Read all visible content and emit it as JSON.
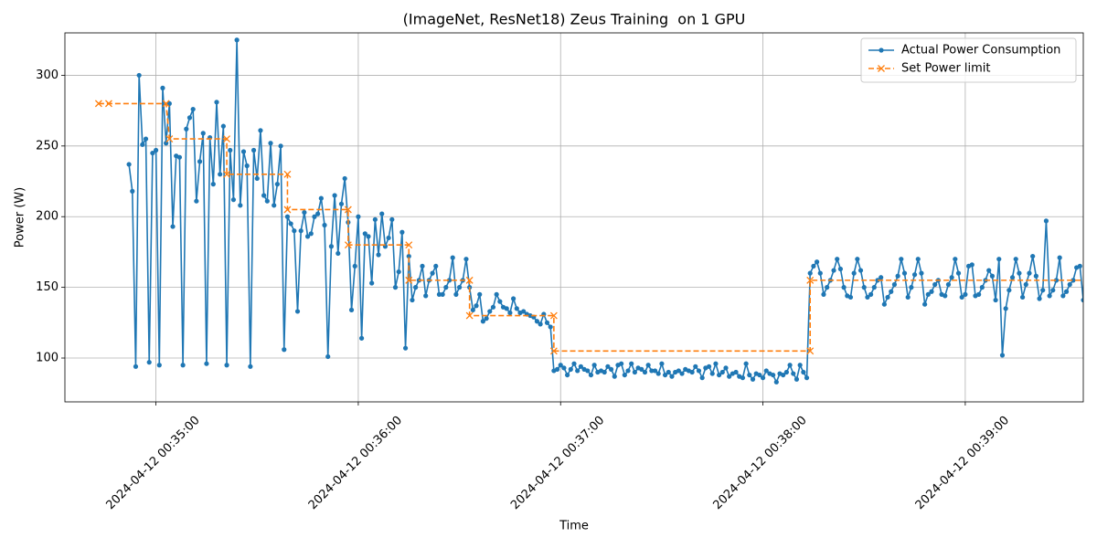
{
  "chart_data": {
    "type": "line",
    "title": "(ImageNet, ResNet18) Zeus Training  on 1 GPU",
    "x_label": "Time",
    "y_label": "Power (W)",
    "xlim": [
      "2024-04-12 00:34:33",
      "2024-04-12 00:39:35"
    ],
    "xticks": [
      "2024-04-12 00:35:00",
      "2024-04-12 00:36:00",
      "2024-04-12 00:37:00",
      "2024-04-12 00:38:00",
      "2024-04-12 00:39:00"
    ],
    "ylim": [
      69,
      330
    ],
    "yticks": [
      100,
      150,
      200,
      250,
      300
    ],
    "grid": true,
    "legend": "upper right",
    "series": [
      {
        "name": "Actual Power Consumption",
        "color": "#1f77b4",
        "marker": "o",
        "linestyle": "solid",
        "x": [
          "2024-04-12 00:34:52",
          "2024-04-12 00:34:53",
          "2024-04-12 00:34:54",
          "2024-04-12 00:34:55",
          "2024-04-12 00:34:56",
          "2024-04-12 00:34:57",
          "2024-04-12 00:34:58",
          "2024-04-12 00:34:59",
          "2024-04-12 00:35:00",
          "2024-04-12 00:35:01",
          "2024-04-12 00:35:02",
          "2024-04-12 00:35:03",
          "2024-04-12 00:35:04",
          "2024-04-12 00:35:05",
          "2024-04-12 00:35:06",
          "2024-04-12 00:35:07",
          "2024-04-12 00:35:08",
          "2024-04-12 00:35:09",
          "2024-04-12 00:35:10",
          "2024-04-12 00:35:11",
          "2024-04-12 00:35:12",
          "2024-04-12 00:35:13",
          "2024-04-12 00:35:14",
          "2024-04-12 00:35:15",
          "2024-04-12 00:35:16",
          "2024-04-12 00:35:17",
          "2024-04-12 00:35:18",
          "2024-04-12 00:35:19",
          "2024-04-12 00:35:20",
          "2024-04-12 00:35:21",
          "2024-04-12 00:35:22",
          "2024-04-12 00:35:23",
          "2024-04-12 00:35:24",
          "2024-04-12 00:35:25",
          "2024-04-12 00:35:26",
          "2024-04-12 00:35:27",
          "2024-04-12 00:35:28",
          "2024-04-12 00:35:29",
          "2024-04-12 00:35:30",
          "2024-04-12 00:35:31",
          "2024-04-12 00:35:32",
          "2024-04-12 00:35:33",
          "2024-04-12 00:35:34",
          "2024-04-12 00:35:35",
          "2024-04-12 00:35:36",
          "2024-04-12 00:35:37",
          "2024-04-12 00:35:38",
          "2024-04-12 00:35:39",
          "2024-04-12 00:35:40",
          "2024-04-12 00:35:41",
          "2024-04-12 00:35:42",
          "2024-04-12 00:35:43",
          "2024-04-12 00:35:44",
          "2024-04-12 00:35:45",
          "2024-04-12 00:35:46",
          "2024-04-12 00:35:47",
          "2024-04-12 00:35:48",
          "2024-04-12 00:35:49",
          "2024-04-12 00:35:50",
          "2024-04-12 00:35:51",
          "2024-04-12 00:35:52",
          "2024-04-12 00:35:53",
          "2024-04-12 00:35:54",
          "2024-04-12 00:35:55",
          "2024-04-12 00:35:56",
          "2024-04-12 00:35:57",
          "2024-04-12 00:35:58",
          "2024-04-12 00:35:59",
          "2024-04-12 00:36:00",
          "2024-04-12 00:36:01",
          "2024-04-12 00:36:02",
          "2024-04-12 00:36:03",
          "2024-04-12 00:36:04",
          "2024-04-12 00:36:05",
          "2024-04-12 00:36:06",
          "2024-04-12 00:36:07",
          "2024-04-12 00:36:08",
          "2024-04-12 00:36:09",
          "2024-04-12 00:36:10",
          "2024-04-12 00:36:11",
          "2024-04-12 00:36:12",
          "2024-04-12 00:36:13",
          "2024-04-12 00:36:14",
          "2024-04-12 00:36:15",
          "2024-04-12 00:36:16",
          "2024-04-12 00:36:17",
          "2024-04-12 00:36:18",
          "2024-04-12 00:36:19",
          "2024-04-12 00:36:20",
          "2024-04-12 00:36:21",
          "2024-04-12 00:36:22",
          "2024-04-12 00:36:23",
          "2024-04-12 00:36:24",
          "2024-04-12 00:36:25",
          "2024-04-12 00:36:26",
          "2024-04-12 00:36:27",
          "2024-04-12 00:36:28",
          "2024-04-12 00:36:29",
          "2024-04-12 00:36:30",
          "2024-04-12 00:36:31",
          "2024-04-12 00:36:32",
          "2024-04-12 00:36:33",
          "2024-04-12 00:36:34",
          "2024-04-12 00:36:35",
          "2024-04-12 00:36:36",
          "2024-04-12 00:36:37",
          "2024-04-12 00:36:38",
          "2024-04-12 00:36:39",
          "2024-04-12 00:36:40",
          "2024-04-12 00:36:41",
          "2024-04-12 00:36:42",
          "2024-04-12 00:36:43",
          "2024-04-12 00:36:44",
          "2024-04-12 00:36:45",
          "2024-04-12 00:36:46",
          "2024-04-12 00:36:47",
          "2024-04-12 00:36:48",
          "2024-04-12 00:36:49",
          "2024-04-12 00:36:50",
          "2024-04-12 00:36:51",
          "2024-04-12 00:36:52",
          "2024-04-12 00:36:53",
          "2024-04-12 00:36:54",
          "2024-04-12 00:36:55",
          "2024-04-12 00:36:56",
          "2024-04-12 00:36:57",
          "2024-04-12 00:36:58",
          "2024-04-12 00:36:59",
          "2024-04-12 00:37:00",
          "2024-04-12 00:37:01",
          "2024-04-12 00:37:02",
          "2024-04-12 00:37:03",
          "2024-04-12 00:37:04",
          "2024-04-12 00:37:05",
          "2024-04-12 00:37:06",
          "2024-04-12 00:37:07",
          "2024-04-12 00:37:08",
          "2024-04-12 00:37:09",
          "2024-04-12 00:37:10",
          "2024-04-12 00:37:11",
          "2024-04-12 00:37:12",
          "2024-04-12 00:37:13",
          "2024-04-12 00:37:14",
          "2024-04-12 00:37:15",
          "2024-04-12 00:37:16",
          "2024-04-12 00:37:17",
          "2024-04-12 00:37:18",
          "2024-04-12 00:37:19",
          "2024-04-12 00:37:20",
          "2024-04-12 00:37:21",
          "2024-04-12 00:37:22",
          "2024-04-12 00:37:23",
          "2024-04-12 00:37:24",
          "2024-04-12 00:37:25",
          "2024-04-12 00:37:26",
          "2024-04-12 00:37:27",
          "2024-04-12 00:37:28",
          "2024-04-12 00:37:29",
          "2024-04-12 00:37:30",
          "2024-04-12 00:37:31",
          "2024-04-12 00:37:32",
          "2024-04-12 00:37:33",
          "2024-04-12 00:37:34",
          "2024-04-12 00:37:35",
          "2024-04-12 00:37:36",
          "2024-04-12 00:37:37",
          "2024-04-12 00:37:38",
          "2024-04-12 00:37:39",
          "2024-04-12 00:37:40",
          "2024-04-12 00:37:41",
          "2024-04-12 00:37:42",
          "2024-04-12 00:37:43",
          "2024-04-12 00:37:44",
          "2024-04-12 00:37:45",
          "2024-04-12 00:37:46",
          "2024-04-12 00:37:47",
          "2024-04-12 00:37:48",
          "2024-04-12 00:37:49",
          "2024-04-12 00:37:50",
          "2024-04-12 00:37:51",
          "2024-04-12 00:37:52",
          "2024-04-12 00:37:53",
          "2024-04-12 00:37:54",
          "2024-04-12 00:37:55",
          "2024-04-12 00:37:56",
          "2024-04-12 00:37:57",
          "2024-04-12 00:37:58",
          "2024-04-12 00:37:59",
          "2024-04-12 00:38:00",
          "2024-04-12 00:38:01",
          "2024-04-12 00:38:02",
          "2024-04-12 00:38:03",
          "2024-04-12 00:38:04",
          "2024-04-12 00:38:05",
          "2024-04-12 00:38:06",
          "2024-04-12 00:38:07",
          "2024-04-12 00:38:08",
          "2024-04-12 00:38:09",
          "2024-04-12 00:38:10",
          "2024-04-12 00:38:11",
          "2024-04-12 00:38:12",
          "2024-04-12 00:38:13",
          "2024-04-12 00:38:14",
          "2024-04-12 00:38:15",
          "2024-04-12 00:38:16",
          "2024-04-12 00:38:17",
          "2024-04-12 00:38:18",
          "2024-04-12 00:38:19",
          "2024-04-12 00:38:20",
          "2024-04-12 00:38:21",
          "2024-04-12 00:38:22",
          "2024-04-12 00:38:23",
          "2024-04-12 00:38:24",
          "2024-04-12 00:38:25",
          "2024-04-12 00:38:26",
          "2024-04-12 00:38:27",
          "2024-04-12 00:38:28",
          "2024-04-12 00:38:29",
          "2024-04-12 00:38:30",
          "2024-04-12 00:38:31",
          "2024-04-12 00:38:32",
          "2024-04-12 00:38:33",
          "2024-04-12 00:38:34",
          "2024-04-12 00:38:35",
          "2024-04-12 00:38:36",
          "2024-04-12 00:38:37",
          "2024-04-12 00:38:38",
          "2024-04-12 00:38:39",
          "2024-04-12 00:38:40",
          "2024-04-12 00:38:41",
          "2024-04-12 00:38:42",
          "2024-04-12 00:38:43",
          "2024-04-12 00:38:44",
          "2024-04-12 00:38:45",
          "2024-04-12 00:38:46",
          "2024-04-12 00:38:47",
          "2024-04-12 00:38:48",
          "2024-04-12 00:38:49",
          "2024-04-12 00:38:50",
          "2024-04-12 00:38:51",
          "2024-04-12 00:38:52",
          "2024-04-12 00:38:53",
          "2024-04-12 00:38:54",
          "2024-04-12 00:38:55",
          "2024-04-12 00:38:56",
          "2024-04-12 00:38:57",
          "2024-04-12 00:38:58",
          "2024-04-12 00:38:59",
          "2024-04-12 00:39:00",
          "2024-04-12 00:39:01",
          "2024-04-12 00:39:02",
          "2024-04-12 00:39:03",
          "2024-04-12 00:39:04",
          "2024-04-12 00:39:05",
          "2024-04-12 00:39:06",
          "2024-04-12 00:39:07",
          "2024-04-12 00:39:08",
          "2024-04-12 00:39:09",
          "2024-04-12 00:39:10",
          "2024-04-12 00:39:11",
          "2024-04-12 00:39:12",
          "2024-04-12 00:39:13",
          "2024-04-12 00:39:14",
          "2024-04-12 00:39:15",
          "2024-04-12 00:39:16",
          "2024-04-12 00:39:17",
          "2024-04-12 00:39:18",
          "2024-04-12 00:39:19",
          "2024-04-12 00:39:20",
          "2024-04-12 00:39:21",
          "2024-04-12 00:39:22",
          "2024-04-12 00:39:23",
          "2024-04-12 00:39:24",
          "2024-04-12 00:39:25",
          "2024-04-12 00:39:26",
          "2024-04-12 00:39:27",
          "2024-04-12 00:39:28",
          "2024-04-12 00:39:29",
          "2024-04-12 00:39:30",
          "2024-04-12 00:39:31",
          "2024-04-12 00:39:32",
          "2024-04-12 00:39:33",
          "2024-04-12 00:39:34",
          "2024-04-12 00:39:35"
        ],
        "values": [
          237,
          218,
          94,
          300,
          251,
          255,
          97,
          245,
          247,
          95,
          291,
          252,
          280,
          193,
          243,
          242,
          95,
          262,
          270,
          276,
          211,
          239,
          259,
          96,
          256,
          223,
          281,
          230,
          264,
          95,
          247,
          212,
          325,
          208,
          246,
          236,
          94,
          247,
          227,
          261,
          215,
          211,
          252,
          208,
          223,
          250,
          106,
          200,
          195,
          190,
          133,
          190,
          203,
          186,
          188,
          200,
          202,
          213,
          194,
          101,
          179,
          215,
          174,
          209,
          227,
          196,
          134,
          165,
          200,
          114,
          188,
          186,
          153,
          198,
          173,
          202,
          179,
          185,
          198,
          150,
          161,
          189,
          107,
          172,
          141,
          150,
          155,
          165,
          144,
          155,
          160,
          165,
          145,
          145,
          150,
          155,
          171,
          145,
          150,
          155,
          170,
          150,
          134,
          137,
          145,
          126,
          128,
          133,
          136,
          145,
          140,
          136,
          135,
          132,
          142,
          135,
          132,
          133,
          131,
          130,
          129,
          126,
          124,
          131,
          125,
          122,
          91,
          92,
          95,
          93,
          88,
          92,
          96,
          91,
          94,
          92,
          91,
          88,
          95,
          90,
          91,
          90,
          94,
          92,
          87,
          95,
          96,
          88,
          91,
          96,
          90,
          93,
          92,
          90,
          95,
          91,
          91,
          89,
          96,
          88,
          90,
          87,
          90,
          91,
          89,
          92,
          91,
          90,
          94,
          91,
          86,
          93,
          94,
          89,
          96,
          88,
          90,
          93,
          87,
          89,
          90,
          87,
          86,
          96,
          88,
          85,
          89,
          88,
          86,
          91,
          89,
          88,
          83,
          89,
          88,
          90,
          95,
          89,
          85,
          95,
          90,
          86,
          160,
          165,
          168,
          160,
          145,
          150,
          155,
          162,
          170,
          163,
          150,
          144,
          143,
          160,
          170,
          162,
          150,
          143,
          145,
          150,
          155,
          157,
          138,
          143,
          147,
          152,
          158,
          170,
          160,
          143,
          150,
          159,
          170,
          160,
          138,
          145,
          147,
          152,
          155,
          145,
          144,
          152,
          157,
          170,
          160,
          143,
          145,
          165,
          166,
          144,
          145,
          150,
          155,
          162,
          158,
          141,
          170,
          102,
          135,
          148,
          157,
          170,
          160,
          143,
          152,
          160,
          172,
          158,
          142,
          148,
          197,
          144,
          148,
          155,
          171,
          144,
          147,
          152,
          155,
          164,
          165,
          141
        ]
      },
      {
        "name": "Set Power limit",
        "color": "#ff7f0e",
        "marker": "x",
        "linestyle": "dashed",
        "x": [
          "2024-04-12 00:34:43",
          "2024-04-12 00:34:46",
          "2024-04-12 00:35:03",
          "2024-04-12 00:35:04",
          "2024-04-12 00:35:21",
          "2024-04-12 00:35:21",
          "2024-04-12 00:35:39",
          "2024-04-12 00:35:39",
          "2024-04-12 00:35:57",
          "2024-04-12 00:35:57",
          "2024-04-12 00:36:15",
          "2024-04-12 00:36:15",
          "2024-04-12 00:36:33",
          "2024-04-12 00:36:33",
          "2024-04-12 00:36:58",
          "2024-04-12 00:36:58",
          "2024-04-12 00:38:14",
          "2024-04-12 00:38:14",
          "2024-04-12 00:39:36"
        ],
        "values": [
          280,
          280,
          280,
          255,
          255,
          230,
          230,
          205,
          205,
          180,
          180,
          155,
          155,
          130,
          130,
          105,
          105,
          155,
          155
        ]
      }
    ]
  }
}
